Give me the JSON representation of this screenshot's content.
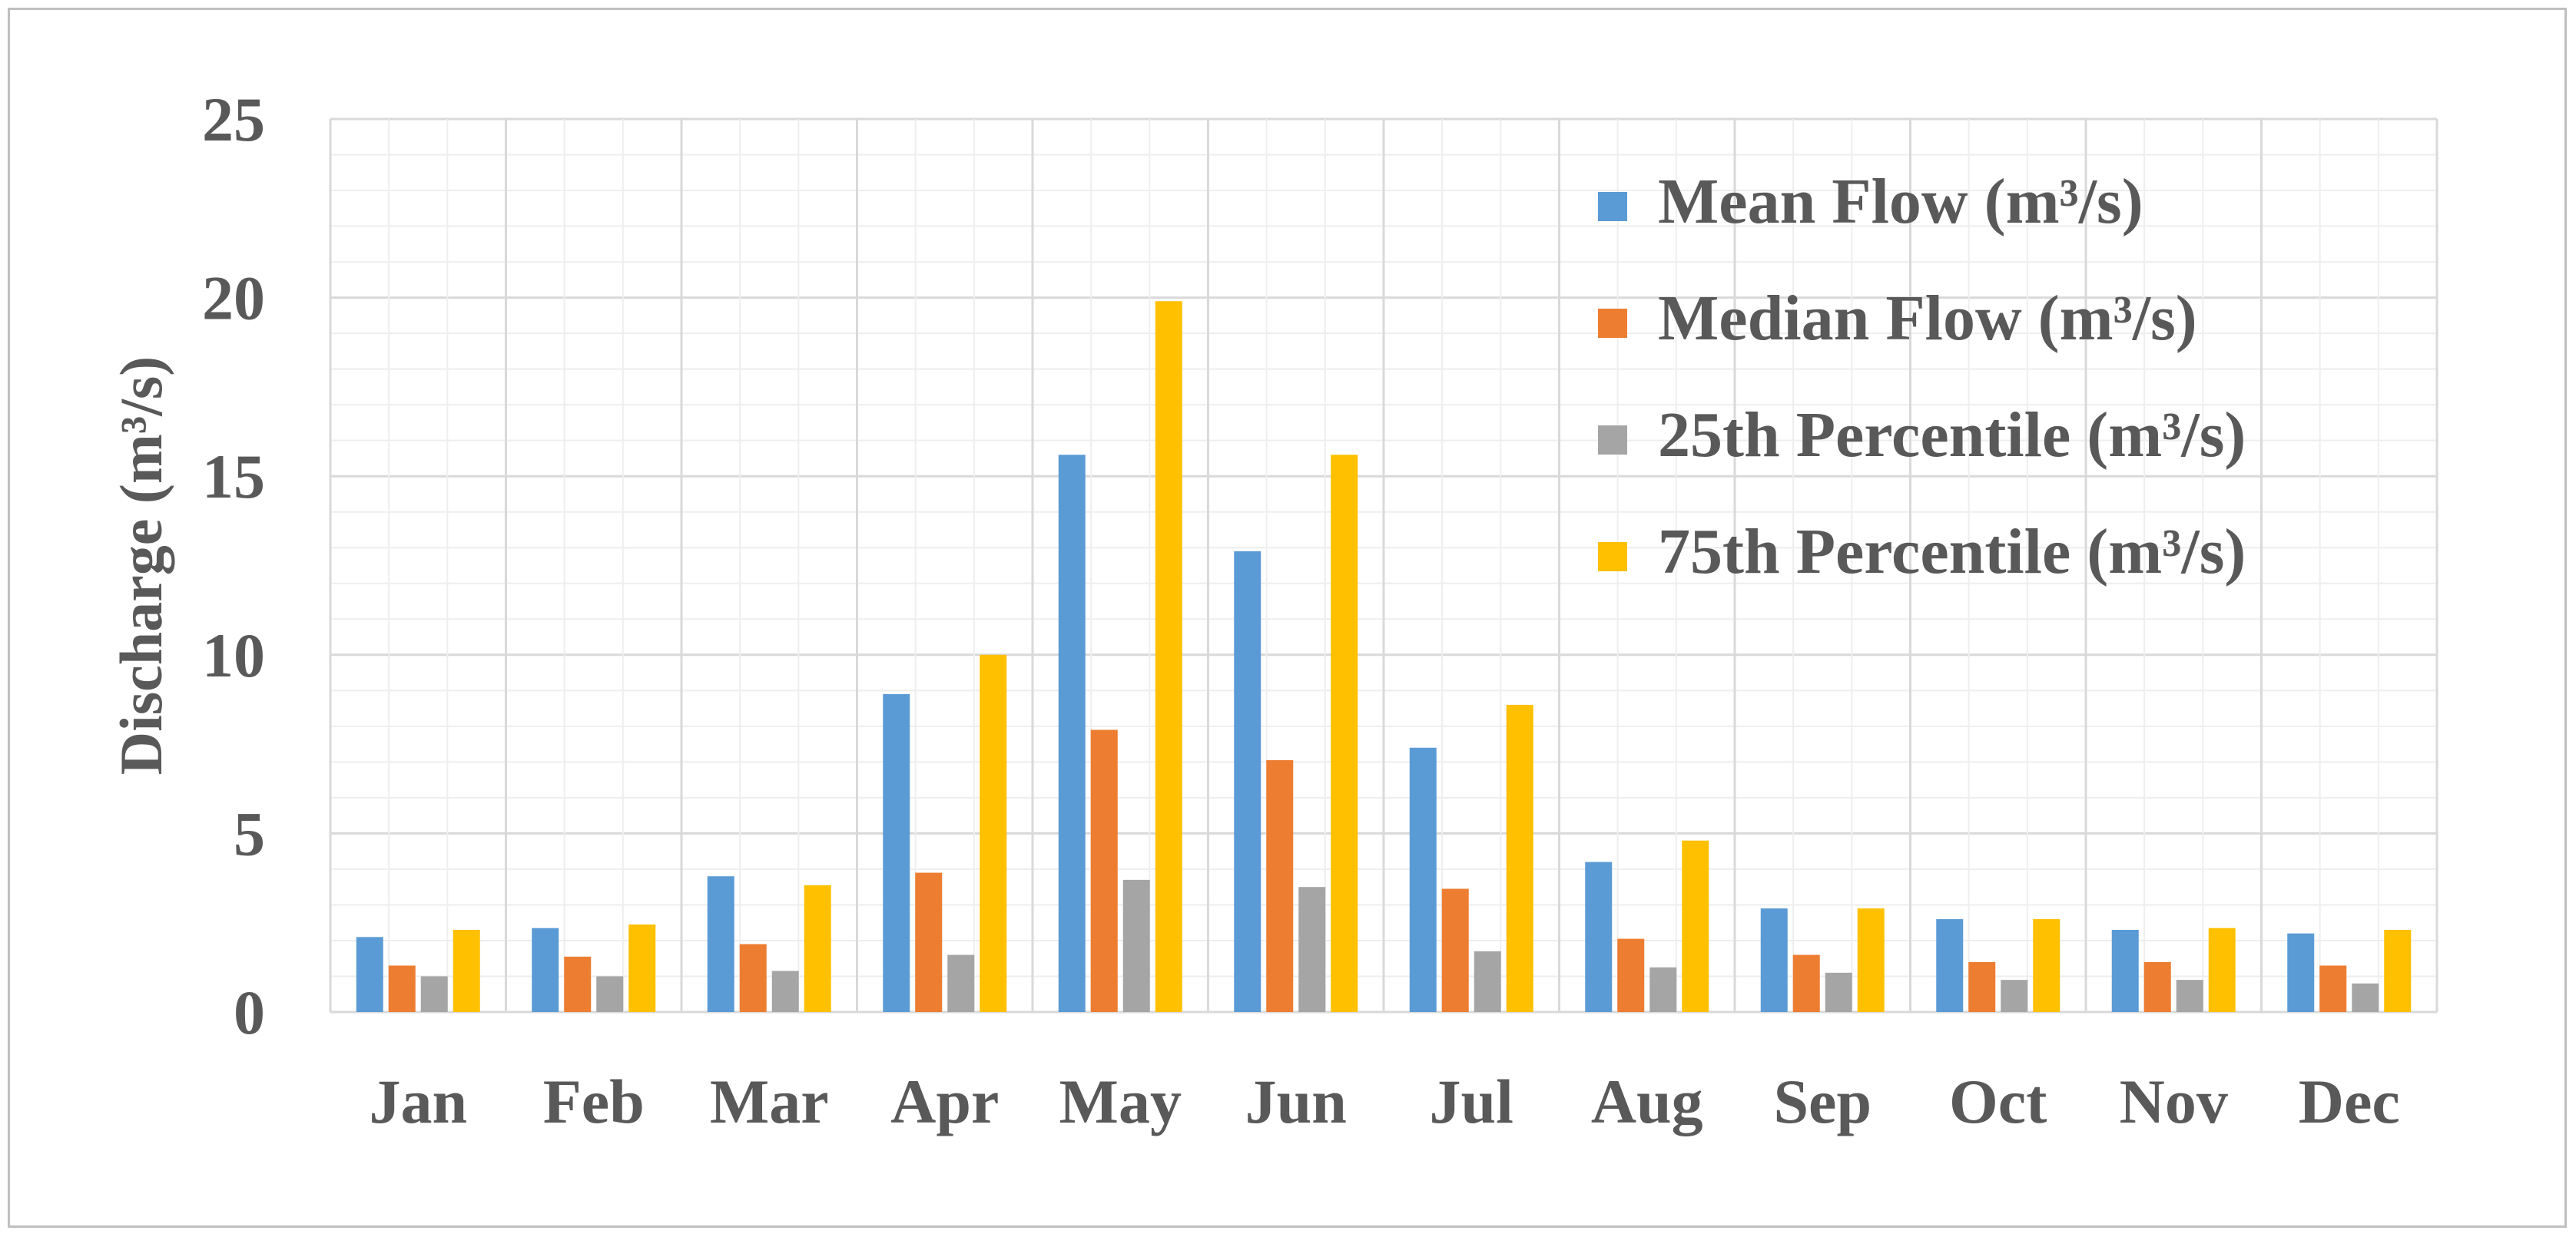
{
  "chart_data": {
    "type": "bar",
    "categories": [
      "Jan",
      "Feb",
      "Mar",
      "Apr",
      "May",
      "Jun",
      "Jul",
      "Aug",
      "Sep",
      "Oct",
      "Nov",
      "Dec"
    ],
    "series": [
      {
        "name": "Mean Flow (m³/s)",
        "color": "#5b9bd5",
        "values": [
          2.1,
          2.35,
          3.8,
          8.9,
          15.6,
          12.9,
          7.4,
          4.2,
          2.9,
          2.6,
          2.3,
          2.2
        ]
      },
      {
        "name": "Median Flow (m³/s)",
        "color": "#ed7d31",
        "values": [
          1.3,
          1.55,
          1.9,
          3.9,
          7.9,
          7.05,
          3.45,
          2.05,
          1.6,
          1.4,
          1.4,
          1.3
        ]
      },
      {
        "name": "25th Percentile (m³/s)",
        "color": "#a5a5a5",
        "values": [
          1.0,
          1.0,
          1.15,
          1.6,
          3.7,
          3.5,
          1.7,
          1.25,
          1.1,
          0.9,
          0.9,
          0.8
        ]
      },
      {
        "name": "75th Percentile (m³/s)",
        "color": "#ffc000",
        "values": [
          2.3,
          2.45,
          3.55,
          10.0,
          19.9,
          15.6,
          8.6,
          4.8,
          2.9,
          2.6,
          2.35,
          2.3
        ]
      }
    ],
    "title": "",
    "xlabel": "",
    "ylabel": "Discharge (m³/s)",
    "ylim": [
      0,
      25
    ],
    "yticks": [
      0,
      5,
      10,
      15,
      20,
      25
    ],
    "grid": true,
    "legend_position": "top-right"
  }
}
